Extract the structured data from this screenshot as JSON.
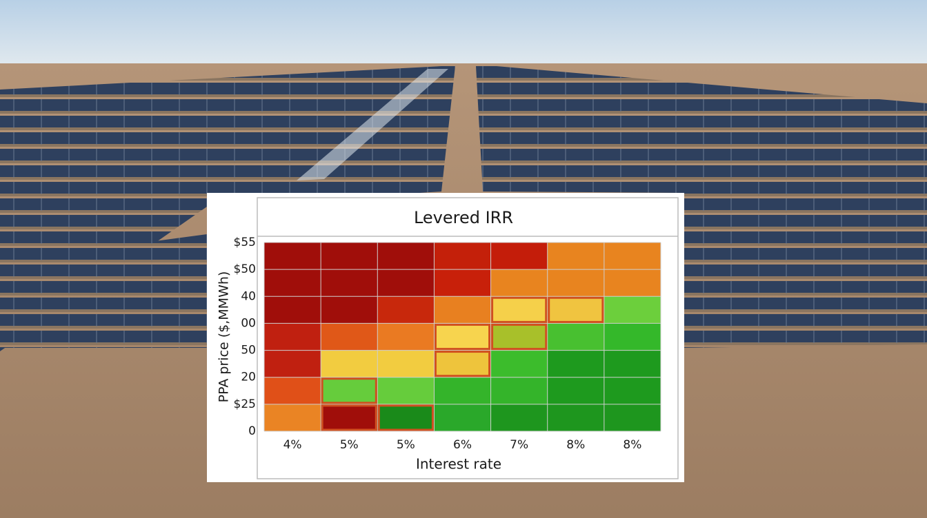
{
  "chart_data": {
    "type": "heatmap",
    "title": "Levered IRR",
    "x_label": "Interest rate",
    "y_label": "PPA price ($,MMWh)",
    "categories": [
      "4%",
      "5%",
      "5%",
      "6%",
      "7%",
      "8%",
      "8%"
    ],
    "y_boundary_labels": [
      "$55",
      "$50",
      "40",
      "00",
      "50",
      "20",
      "$25",
      "0"
    ],
    "cell_colors": [
      [
        "#a00e0a",
        "#a00e0a",
        "#a00e0a",
        "#c4200a",
        "#c41d0a",
        "#e8841f",
        "#e8841f"
      ],
      [
        "#a00e0a",
        "#a00e0a",
        "#a00e0a",
        "#c8200a",
        "#e8841f",
        "#e8841f",
        "#e8841f"
      ],
      [
        "#a00e0a",
        "#a00e0a",
        "#c8280c",
        "#e88020",
        "#f5d04a",
        "#f0c440",
        "#6ccf3c"
      ],
      [
        "#c02010",
        "#e05818",
        "#ea7a22",
        "#f7d44e",
        "#a8c02a",
        "#48c030",
        "#34b82a"
      ],
      [
        "#c02010",
        "#f2cc40",
        "#f2cc40",
        "#eec43c",
        "#3cbc2c",
        "#1e9a1e",
        "#1e9a1e"
      ],
      [
        "#e05018",
        "#66cc3c",
        "#66cc3c",
        "#34b42a",
        "#34b42a",
        "#1e9a1e",
        "#1e9a1e"
      ],
      [
        "#ea8424",
        "#a00e0a",
        "#1a8a1a",
        "#2aa82a",
        "#1e961e",
        "#1e961e",
        "#1e961e"
      ]
    ],
    "outlined_cells": [
      [
        2,
        4
      ],
      [
        2,
        5
      ],
      [
        3,
        3
      ],
      [
        3,
        4
      ],
      [
        4,
        3
      ],
      [
        5,
        1
      ],
      [
        6,
        1
      ],
      [
        6,
        2
      ]
    ],
    "outline_color": "#d05020",
    "grid": true
  }
}
